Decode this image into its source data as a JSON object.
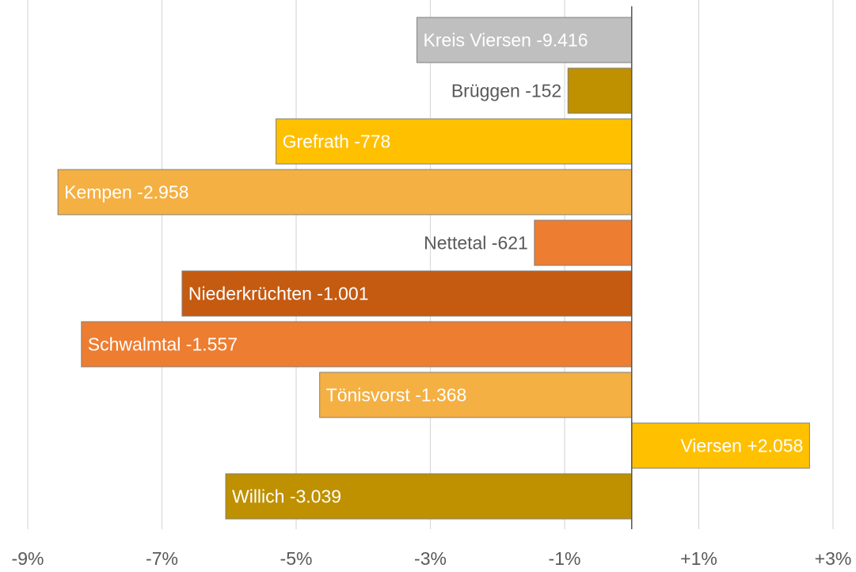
{
  "chart_data": {
    "type": "bar",
    "orientation": "horizontal",
    "title": "",
    "xlabel": "",
    "ylabel": "",
    "xlim": [
      -9,
      3
    ],
    "grid": true,
    "x_ticks": [
      -9,
      -7,
      -5,
      -3,
      -1,
      1,
      3
    ],
    "x_tick_labels": [
      "-9%",
      "-7%",
      "-5%",
      "-3%",
      "-1%",
      "+1%",
      "+3%"
    ],
    "categories": [
      "Kreis Viersen",
      "Brüggen",
      "Grefrath",
      "Kempen",
      "Nettetal",
      "Niederkrüchten",
      "Schwalmtal",
      "Tönisvorst",
      "Viersen",
      "Willich"
    ],
    "values": [
      -3.2,
      -0.95,
      -5.3,
      -8.55,
      -1.45,
      -6.7,
      -8.2,
      -4.65,
      2.65,
      -6.05
    ],
    "data_labels": [
      "-9.416",
      "-152",
      "-778",
      "-2.958",
      "-621",
      "-1.001",
      "-1.557",
      "-1.368",
      "+2.058",
      "-3.039"
    ],
    "colors": [
      "#bfbfbf",
      "#bf9000",
      "#ffc000",
      "#f4b042",
      "#ed7d31",
      "#c55a11",
      "#ed7d31",
      "#f4b042",
      "#ffc000",
      "#bf9000"
    ],
    "label_colors": [
      "#ffffff",
      "#595959",
      "#ffffff",
      "#ffffff",
      "#595959",
      "#ffffff",
      "#ffffff",
      "#ffffff",
      "#ffffff",
      "#ffffff"
    ],
    "label_inside": [
      true,
      false,
      true,
      true,
      false,
      true,
      true,
      true,
      true,
      true
    ]
  }
}
